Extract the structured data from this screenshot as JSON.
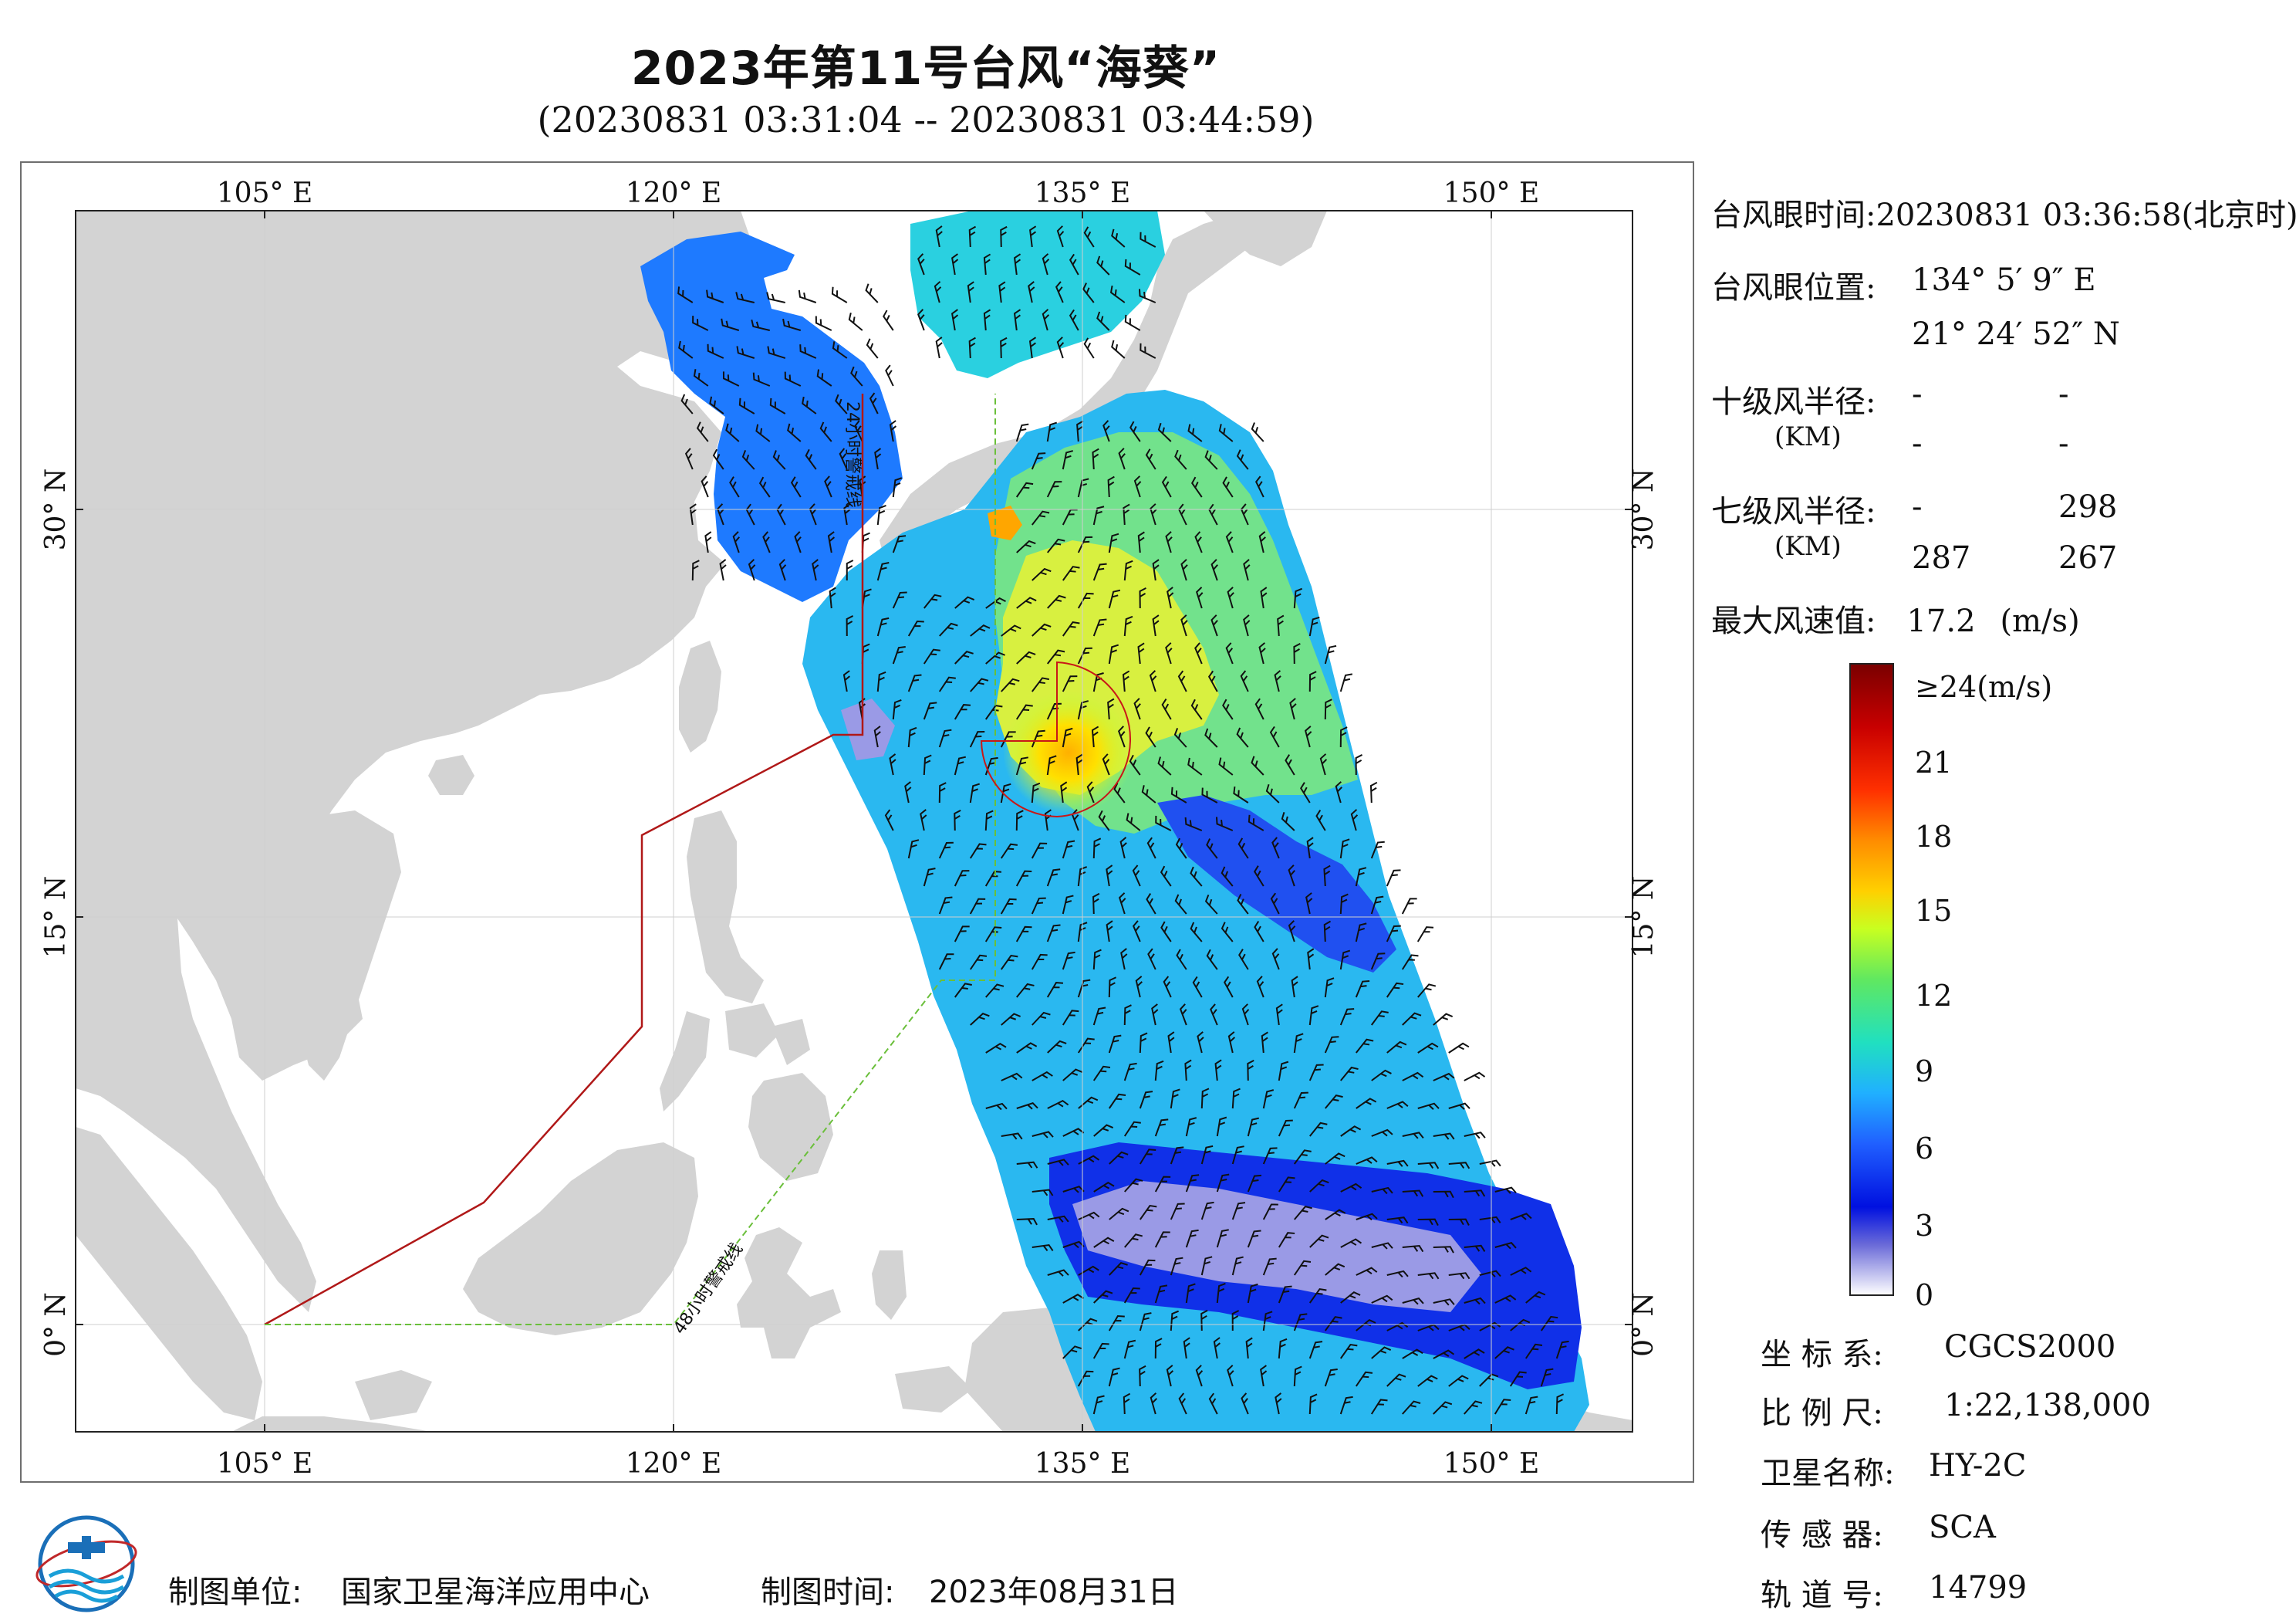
{
  "header": {
    "title": "2023年第11号台风“海葵”",
    "subtitle": "(20230831 03:31:04 -- 20230831 03:44:59)"
  },
  "map": {
    "top_ticks": [
      "105° E",
      "120° E",
      "135° E",
      "150° E"
    ],
    "bottom_ticks": [
      "105° E",
      "120° E",
      "135° E",
      "150° E"
    ],
    "left_ticks": [
      "30° N",
      "15° N",
      "0° N"
    ],
    "right_ticks": [
      "30° N",
      "15° N",
      "0° N"
    ],
    "lon_range": [
      98,
      155
    ],
    "lat_range": [
      -4,
      41
    ],
    "land_color": "#d3d3d3",
    "sea_color": "#ffffff",
    "warning_line_24h": "24小时警戒线",
    "warning_line_48h": "48小时警戒线",
    "line_24h_color": "#b01818",
    "line_48h_color": "#6abf3a"
  },
  "info": {
    "eye_time_label": "台风眼时间:",
    "eye_time_value": "20230831 03:36:58(北京时)",
    "eye_pos_label": "台风眼位置:",
    "eye_lon": "134° 5′ 9″ E",
    "eye_lat": "21° 24′ 52″ N",
    "r10_label": "十级风半径:",
    "r10_unit": "(KM)",
    "r10_values": [
      "-",
      "-",
      "-",
      "-"
    ],
    "r7_label": "七级风半径:",
    "r7_unit": "(KM)",
    "r7_values": [
      "-",
      "298",
      "287",
      "267"
    ],
    "max_wind_label": "最大风速值:",
    "max_wind_value": "17.2",
    "max_wind_unit": "(m/s)"
  },
  "colorbar": {
    "labels": [
      "≥24(m/s)",
      "21",
      "18",
      "15",
      "12",
      "9",
      "6",
      "3",
      "0"
    ],
    "values": [
      24,
      21,
      18,
      15,
      12,
      9,
      6,
      3,
      0
    ],
    "colors": [
      "#7a0000",
      "#c80000",
      "#ff3000",
      "#ff8c00",
      "#ffd000",
      "#c8ff20",
      "#60e860",
      "#20e0c0",
      "#20b0ff",
      "#2060ff",
      "#0010e0",
      "#6060d0",
      "#ffffff"
    ]
  },
  "meta": {
    "crs_label": "坐 标 系:",
    "crs_value": "CGCS2000",
    "scale_label": "比 例 尺:",
    "scale_value": "1:22,138,000",
    "sat_label": "卫星名称:",
    "sat_value": "HY-2C",
    "sensor_label": "传 感 器:",
    "sensor_value": "SCA",
    "orbit_label": "轨 道 号:",
    "orbit_value": "14799"
  },
  "footer": {
    "unit_label": "制图单位:",
    "unit_value": "国家卫星海洋应用中心",
    "time_label": "制图时间:",
    "time_value": "2023年08月31日"
  }
}
